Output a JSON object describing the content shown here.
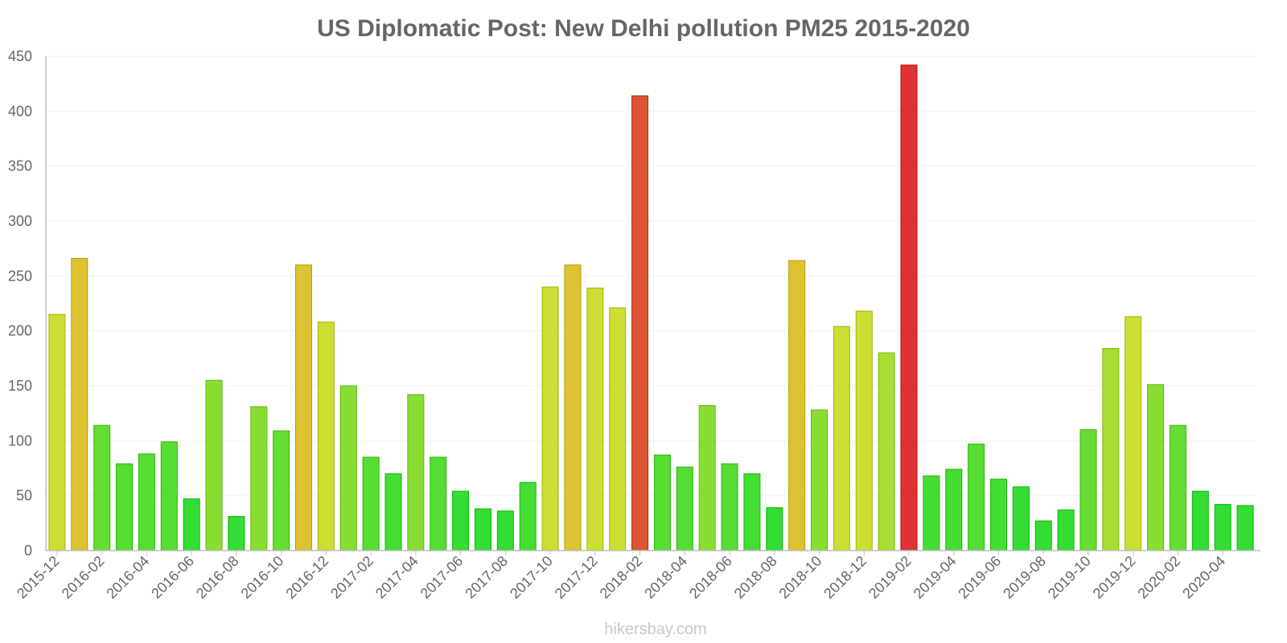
{
  "chart_data": {
    "type": "bar",
    "title": "US Diplomatic Post: New Delhi pollution PM25 2015-2020",
    "xlabel": "",
    "ylabel": "",
    "ylim": [
      0,
      450
    ],
    "yticks": [
      0,
      50,
      100,
      150,
      200,
      250,
      300,
      350,
      400,
      450
    ],
    "grid": true,
    "legend": "none",
    "categories": [
      "2015-12",
      "2016-01",
      "2016-02",
      "2016-03",
      "2016-04",
      "2016-05",
      "2016-06",
      "2016-07",
      "2016-08",
      "2016-09",
      "2016-10",
      "2016-11",
      "2016-12",
      "2017-01",
      "2017-02",
      "2017-03",
      "2017-04",
      "2017-05",
      "2017-06",
      "2017-07",
      "2017-08",
      "2017-09",
      "2017-10",
      "2017-11",
      "2017-12",
      "2018-01",
      "2018-02",
      "2018-03",
      "2018-04",
      "2018-05",
      "2018-06",
      "2018-07",
      "2018-08",
      "2018-09",
      "2018-10",
      "2018-11",
      "2018-12",
      "2019-01",
      "2019-02",
      "2019-03",
      "2019-04",
      "2019-05",
      "2019-06",
      "2019-07",
      "2019-08",
      "2019-09",
      "2019-10",
      "2019-11",
      "2019-12",
      "2020-01",
      "2020-02",
      "2020-03",
      "2020-04",
      "2020-05"
    ],
    "values": [
      215,
      266,
      114,
      79,
      88,
      99,
      47,
      155,
      31,
      131,
      109,
      260,
      208,
      150,
      85,
      70,
      142,
      85,
      54,
      38,
      36,
      62,
      240,
      260,
      239,
      221,
      414,
      87,
      76,
      132,
      79,
      70,
      39,
      264,
      128,
      204,
      218,
      180,
      442,
      68,
      74,
      97,
      65,
      58,
      27,
      37,
      110,
      184,
      213,
      151,
      114,
      54,
      42,
      41
    ],
    "xtick_labels": [
      "2015-12",
      "2016-02",
      "2016-04",
      "2016-06",
      "2016-08",
      "2016-10",
      "2016-12",
      "2017-02",
      "2017-04",
      "2017-06",
      "2017-08",
      "2017-10",
      "2017-12",
      "2018-02",
      "2018-04",
      "2018-06",
      "2018-08",
      "2018-10",
      "2018-12",
      "2019-02",
      "2019-04",
      "2019-06",
      "2019-08",
      "2019-10",
      "2019-12",
      "2020-02",
      "2020-04"
    ],
    "colors": {
      "good": "#33dd33",
      "moderate": "#ccdd33",
      "unhealthy": "#ddc233",
      "very_unhealthy": "#dd5533",
      "hazardous": "#dd3333",
      "title": "#666666",
      "axis": "#bdbdbd",
      "grid": "#f2f2f2"
    },
    "watermark": "hikersbay.com"
  }
}
